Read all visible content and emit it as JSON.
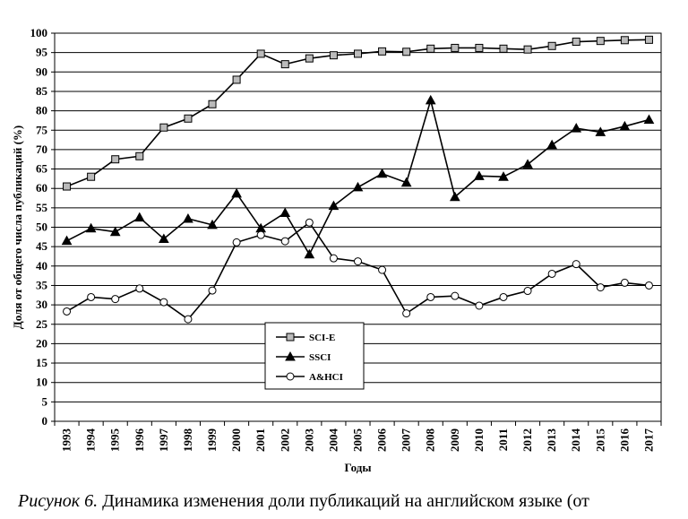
{
  "caption": {
    "label": "Рисунок 6.",
    "text": " Динамика изменения доли публикаций на английском языке (от"
  },
  "chart_data": {
    "type": "line",
    "xlabel": "Годы",
    "ylabel": "Доля от общего числа публикаций (%)",
    "ylim": [
      0,
      100
    ],
    "yticks": [
      0,
      5,
      10,
      15,
      20,
      25,
      30,
      35,
      40,
      45,
      50,
      55,
      60,
      65,
      70,
      75,
      80,
      85,
      90,
      95,
      100
    ],
    "grid": "horizontal",
    "legend_position": "center-left",
    "x": [
      "1993",
      "1994",
      "1995",
      "1996",
      "1997",
      "1998",
      "1999",
      "2000",
      "2001",
      "2002",
      "2003",
      "2004",
      "2005",
      "2006",
      "2007",
      "2008",
      "2009",
      "2010",
      "2011",
      "2012",
      "2013",
      "2014",
      "2015",
      "2016",
      "2017"
    ],
    "series": [
      {
        "name": "SCI-E",
        "marker": "square",
        "marker_fill": "#bbbbbb",
        "values": [
          60.5,
          63,
          67.5,
          68.3,
          75.7,
          78,
          81.7,
          88,
          94.7,
          92,
          93.5,
          94.3,
          94.7,
          95.3,
          95.2,
          96,
          96.2,
          96.2,
          96,
          95.8,
          96.7,
          97.8,
          98,
          98.2,
          98.3
        ]
      },
      {
        "name": "SSCI",
        "marker": "triangle",
        "marker_fill": "#000000",
        "values": [
          46.5,
          49.7,
          48.8,
          52.5,
          47,
          52.2,
          50.6,
          58.7,
          49.7,
          53.7,
          43,
          55.5,
          60.3,
          63.8,
          61.5,
          82.7,
          57.8,
          63.2,
          63,
          66.2,
          71.2,
          75.5,
          74.5,
          76,
          77.7
        ]
      },
      {
        "name": "A&HCI",
        "marker": "circle",
        "marker_fill": "#ffffff",
        "values": [
          28.3,
          32,
          31.5,
          34.2,
          30.7,
          26.3,
          33.7,
          46.1,
          48,
          46.4,
          51.2,
          42,
          41.2,
          39,
          27.8,
          32,
          32.3,
          29.8,
          32,
          33.6,
          38,
          40.5,
          34.5,
          35.7,
          35
        ]
      }
    ]
  }
}
